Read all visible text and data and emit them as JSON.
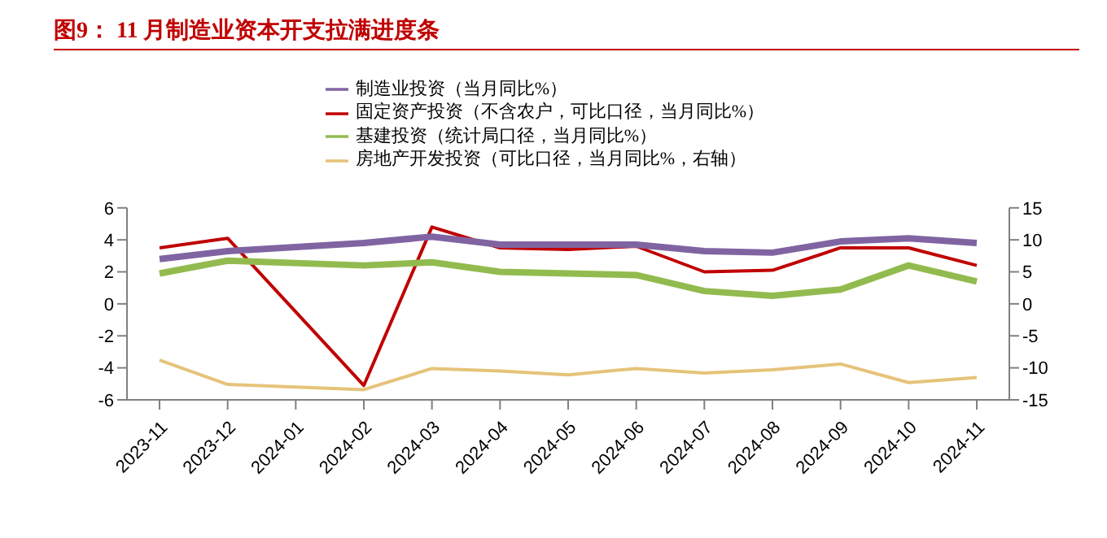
{
  "chart_data": {
    "type": "line",
    "title": "图9：  11 月制造业资本开支拉满进度条",
    "categories": [
      "2023-11",
      "2023-12",
      "2024-01",
      "2024-02",
      "2024-03",
      "2024-04",
      "2024-05",
      "2024-06",
      "2024-07",
      "2024-08",
      "2024-09",
      "2024-10",
      "2024-11"
    ],
    "series": [
      {
        "name": "固定资产投资（不含农户，可比口径，当月同比%）",
        "color": "#c00000",
        "values": [
          3.5,
          4.1,
          null,
          -5.1,
          4.8,
          3.5,
          3.4,
          3.6,
          2.0,
          2.1,
          3.5,
          3.5,
          2.4
        ]
      },
      {
        "name": "房地产开发投资（可比口径，当月同比%，右轴）",
        "color": "#e6c37a",
        "axis": "y2",
        "values": [
          -8.8,
          -12.6,
          null,
          -13.4,
          -10.1,
          -10.5,
          -11.1,
          -10.1,
          -10.8,
          -10.3,
          -9.4,
          -12.3,
          -11.5
        ]
      },
      {
        "name": "基建投资（统计局口径，当月同比%）",
        "color": "#92bb4f",
        "values": [
          1.9,
          2.7,
          null,
          2.4,
          2.6,
          2.0,
          1.9,
          1.8,
          0.8,
          0.5,
          0.9,
          2.4,
          1.4
        ]
      },
      {
        "name": "制造业投资（当月同比%）",
        "color": "#8064a2",
        "values": [
          2.8,
          3.3,
          null,
          3.8,
          4.2,
          3.7,
          3.7,
          3.7,
          3.3,
          3.2,
          3.9,
          4.1,
          3.8
        ]
      }
    ],
    "ylim": [
      -6,
      6
    ],
    "yticks": [
      -6,
      -4,
      -2,
      0,
      2,
      4,
      6
    ],
    "y2lim": [
      -15,
      15
    ],
    "y2ticks": [
      -15,
      -10,
      -5,
      0,
      5,
      10,
      15
    ],
    "legend": "top",
    "grid": false,
    "marker": "none",
    "line_style": "solid"
  }
}
